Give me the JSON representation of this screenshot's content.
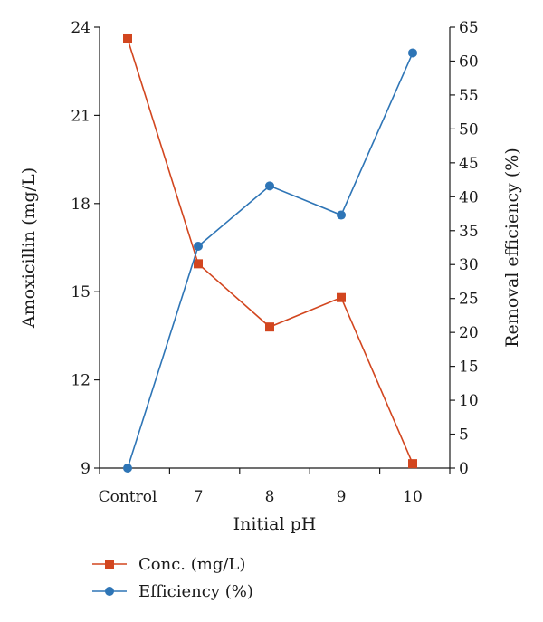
{
  "chart_data": {
    "type": "line",
    "xlabel": "Initial pH",
    "categories": [
      "Control",
      "7",
      "8",
      "9",
      "10"
    ],
    "y_left": {
      "label": "Amoxicillin (mg/L)",
      "lim": [
        9,
        24
      ],
      "ticks": [
        9,
        12,
        15,
        18,
        21,
        24
      ]
    },
    "y_right": {
      "label": "Removal efficiency (%)",
      "lim": [
        0,
        65
      ],
      "ticks": [
        0,
        5,
        10,
        15,
        20,
        25,
        30,
        35,
        40,
        45,
        50,
        55,
        60,
        65
      ]
    },
    "series": [
      {
        "name": "Conc. (mg/L)",
        "axis": "left",
        "marker": "square",
        "color": "#d2461f",
        "values": [
          23.6,
          15.95,
          13.8,
          14.8,
          9.15
        ]
      },
      {
        "name": "Efficiency (%)",
        "axis": "right",
        "marker": "circle",
        "color": "#2e75b6",
        "values": [
          0,
          32.7,
          41.6,
          37.3,
          61.2
        ]
      }
    ],
    "legend_position": "bottom-left",
    "grid": false
  }
}
